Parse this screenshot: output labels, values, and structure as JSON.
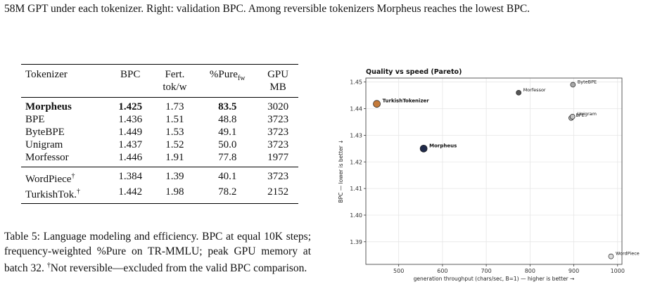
{
  "top_caption": "58M GPT under each tokenizer. Right: validation BPC. Among reversible tokenizers Morpheus reaches the lowest BPC.",
  "table": {
    "headers": [
      {
        "text": "Tokenizer"
      },
      {
        "text": "BPC"
      },
      {
        "text": "Fert.",
        "line2": "tok/w"
      },
      {
        "text": "%Pure",
        "sub": "fw"
      },
      {
        "text": "GPU",
        "line2": "MB"
      }
    ],
    "rows": [
      {
        "cells": [
          "Morpheus",
          "1.425",
          "1.73",
          "83.5",
          "3020"
        ],
        "bold": [
          true,
          true,
          false,
          true,
          false
        ]
      },
      {
        "cells": [
          "BPE",
          "1.436",
          "1.51",
          "48.8",
          "3723"
        ]
      },
      {
        "cells": [
          "ByteBPE",
          "1.449",
          "1.53",
          "49.1",
          "3723"
        ]
      },
      {
        "cells": [
          "Unigram",
          "1.437",
          "1.52",
          "50.0",
          "3723"
        ]
      },
      {
        "cells": [
          "Morfessor",
          "1.446",
          "1.91",
          "77.8",
          "1977"
        ]
      }
    ],
    "extra_rows": [
      {
        "cells": [
          "WordPiece",
          "1.384",
          "1.39",
          "40.1",
          "3723"
        ],
        "mark": "†"
      },
      {
        "cells": [
          "TurkishTok.",
          "1.442",
          "1.98",
          "78.2",
          "2152"
        ],
        "mark": "†"
      }
    ]
  },
  "table_caption": {
    "text": "Table 5: Language modeling and efficiency. BPC at equal 10K steps; frequency-weighted %Pure on TR-MMLU; peak GPU memory at batch 32.",
    "dagger": "†",
    "note": "Not reversible—excluded from the valid BPC comparison."
  },
  "chart_data": {
    "type": "scatter",
    "title": "Quality vs speed (Pareto)",
    "xlabel": "generation throughput (chars/sec, B=1) — higher is better →",
    "ylabel": "BPC — lower is better ↓",
    "xlim": [
      425,
      1010
    ],
    "ylim": [
      1.3815,
      1.4515
    ],
    "xticks": [
      500,
      600,
      700,
      800,
      900,
      1000
    ],
    "yticks": [
      1.39,
      1.4,
      1.41,
      1.42,
      1.43,
      1.44,
      1.45
    ],
    "grid": true,
    "points": [
      {
        "name": "TurkishTokenizer",
        "x": 450,
        "y": 1.4418,
        "color": "#c47a3a",
        "size": 10,
        "bold": true
      },
      {
        "name": "Morpheus",
        "x": 557,
        "y": 1.425,
        "color": "#1f2a4a",
        "size": 10,
        "bold": true
      },
      {
        "name": "Morfessor",
        "x": 774,
        "y": 1.446,
        "color": "#555555",
        "size": 7,
        "bold": false
      },
      {
        "name": "ByteBPE",
        "x": 898,
        "y": 1.449,
        "color": "#a8a8a8",
        "size": 7,
        "bold": false
      },
      {
        "name": "BPE",
        "x": 894,
        "y": 1.4365,
        "color": "#b4b4b4",
        "size": 7,
        "bold": false
      },
      {
        "name": "Unigram",
        "x": 897,
        "y": 1.437,
        "color": "#c4c4c4",
        "size": 7,
        "bold": false
      },
      {
        "name": "WordPiece",
        "x": 985,
        "y": 1.3845,
        "color": "#dcdcdc",
        "size": 7,
        "bold": false
      }
    ]
  }
}
